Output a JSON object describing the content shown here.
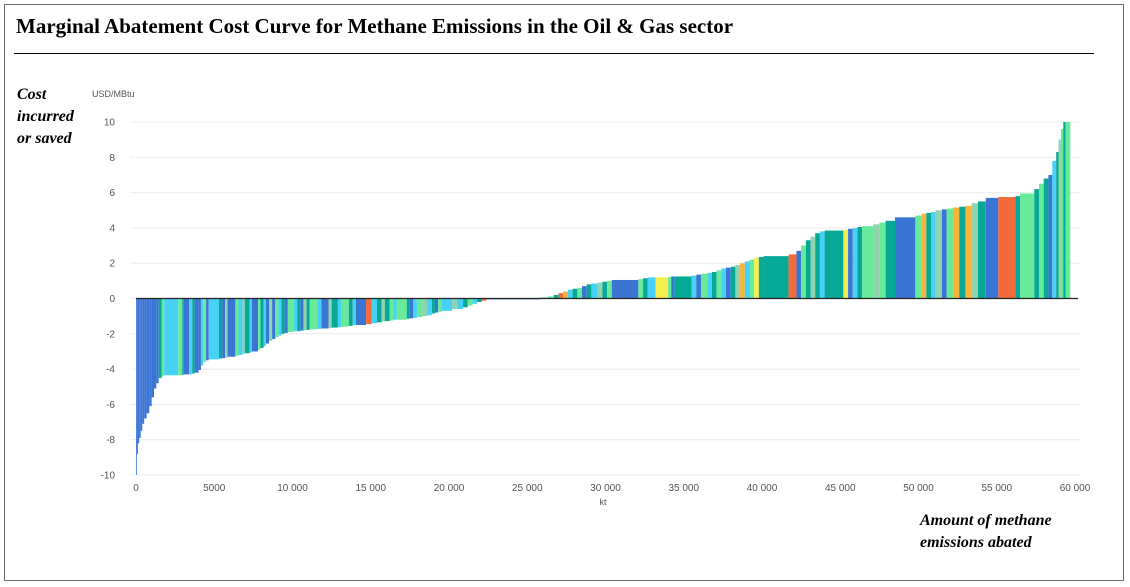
{
  "title": "Marginal Abatement Cost Curve for Methane Emissions in the Oil & Gas sector",
  "side_label": {
    "line1": "Cost",
    "line2": "incurred",
    "line3": "or saved"
  },
  "bottom_label": {
    "line1": "Amount of methane",
    "line2": "emissions abated"
  },
  "colors": {
    "blue": "#3a75d3",
    "cyan": "#47d1f6",
    "teal": "#08a896",
    "lightgreen": "#67ea9a",
    "seafoam": "#8fd3b0",
    "orange": "#f36b3b",
    "amber": "#f8b33b",
    "yellow": "#f3ee4e",
    "navy": "#2d55c4",
    "grid": "#ececec",
    "axis": "#222222"
  },
  "chart_data": {
    "type": "bar",
    "subtype": "marginal-abatement-cost-curve",
    "ylabel": "USD/MBtu",
    "xlabel": "kt",
    "xlim": [
      0,
      60000
    ],
    "ylim": [
      -10,
      10
    ],
    "x_ticks": [
      0,
      5000,
      10000,
      15000,
      20000,
      25000,
      30000,
      35000,
      40000,
      45000,
      50000,
      55000,
      60000
    ],
    "x_tick_labels": [
      "0",
      "5000",
      "10 000",
      "15 000",
      "20 000",
      "25 000",
      "30 000",
      "35 000",
      "40 000",
      "45 000",
      "50 000",
      "55 000",
      "60 000"
    ],
    "y_ticks": [
      -10,
      -8,
      -6,
      -4,
      -2,
      0,
      2,
      4,
      6,
      8,
      10
    ],
    "y_tick_labels": [
      "-10",
      "-8",
      "-6",
      "-4",
      "-2",
      "0",
      "2",
      "4",
      "6",
      "8",
      "10"
    ],
    "grid": "horizontal",
    "segments": [
      {
        "x0": 0,
        "x1": 50,
        "y": -10,
        "c": "blue"
      },
      {
        "x0": 50,
        "x1": 120,
        "y": -8.8,
        "c": "blue"
      },
      {
        "x0": 120,
        "x1": 200,
        "y": -8.2,
        "c": "blue"
      },
      {
        "x0": 200,
        "x1": 300,
        "y": -7.9,
        "c": "blue"
      },
      {
        "x0": 300,
        "x1": 400,
        "y": -7.5,
        "c": "blue"
      },
      {
        "x0": 400,
        "x1": 520,
        "y": -7.1,
        "c": "blue"
      },
      {
        "x0": 520,
        "x1": 680,
        "y": -6.8,
        "c": "blue"
      },
      {
        "x0": 680,
        "x1": 850,
        "y": -6.5,
        "c": "blue"
      },
      {
        "x0": 850,
        "x1": 1000,
        "y": -6.1,
        "c": "blue"
      },
      {
        "x0": 1000,
        "x1": 1150,
        "y": -5.6,
        "c": "blue"
      },
      {
        "x0": 1150,
        "x1": 1300,
        "y": -5.1,
        "c": "blue"
      },
      {
        "x0": 1300,
        "x1": 1450,
        "y": -4.8,
        "c": "blue"
      },
      {
        "x0": 1450,
        "x1": 1650,
        "y": -4.5,
        "c": "teal"
      },
      {
        "x0": 1650,
        "x1": 1800,
        "y": -4.4,
        "c": "lightgreen"
      },
      {
        "x0": 1800,
        "x1": 2700,
        "y": -4.35,
        "c": "cyan"
      },
      {
        "x0": 2700,
        "x1": 2950,
        "y": -4.35,
        "c": "lightgreen"
      },
      {
        "x0": 2950,
        "x1": 3050,
        "y": -4.33,
        "c": "teal"
      },
      {
        "x0": 3050,
        "x1": 3400,
        "y": -4.3,
        "c": "blue"
      },
      {
        "x0": 3400,
        "x1": 3600,
        "y": -4.3,
        "c": "cyan"
      },
      {
        "x0": 3600,
        "x1": 3750,
        "y": -4.25,
        "c": "teal"
      },
      {
        "x0": 3750,
        "x1": 4000,
        "y": -4.2,
        "c": "blue"
      },
      {
        "x0": 4000,
        "x1": 4150,
        "y": -4.05,
        "c": "blue"
      },
      {
        "x0": 4150,
        "x1": 4300,
        "y": -3.8,
        "c": "cyan"
      },
      {
        "x0": 4300,
        "x1": 4480,
        "y": -3.6,
        "c": "lightgreen"
      },
      {
        "x0": 4480,
        "x1": 4650,
        "y": -3.5,
        "c": "blue"
      },
      {
        "x0": 4650,
        "x1": 5300,
        "y": -3.45,
        "c": "cyan"
      },
      {
        "x0": 5300,
        "x1": 5500,
        "y": -3.4,
        "c": "teal"
      },
      {
        "x0": 5500,
        "x1": 5700,
        "y": -3.38,
        "c": "blue"
      },
      {
        "x0": 5700,
        "x1": 5850,
        "y": -3.35,
        "c": "seafoam"
      },
      {
        "x0": 5850,
        "x1": 6350,
        "y": -3.3,
        "c": "blue"
      },
      {
        "x0": 6350,
        "x1": 6550,
        "y": -3.25,
        "c": "lightgreen"
      },
      {
        "x0": 6550,
        "x1": 6800,
        "y": -3.2,
        "c": "cyan"
      },
      {
        "x0": 6800,
        "x1": 6950,
        "y": -3.15,
        "c": "seafoam"
      },
      {
        "x0": 6950,
        "x1": 7250,
        "y": -3.1,
        "c": "teal"
      },
      {
        "x0": 7250,
        "x1": 7400,
        "y": -3.05,
        "c": "cyan"
      },
      {
        "x0": 7400,
        "x1": 7800,
        "y": -3.0,
        "c": "blue"
      },
      {
        "x0": 7800,
        "x1": 7950,
        "y": -2.9,
        "c": "lightgreen"
      },
      {
        "x0": 7950,
        "x1": 8150,
        "y": -2.8,
        "c": "teal"
      },
      {
        "x0": 8150,
        "x1": 8300,
        "y": -2.7,
        "c": "cyan"
      },
      {
        "x0": 8300,
        "x1": 8500,
        "y": -2.55,
        "c": "blue"
      },
      {
        "x0": 8500,
        "x1": 8700,
        "y": -2.4,
        "c": "seafoam"
      },
      {
        "x0": 8700,
        "x1": 8900,
        "y": -2.3,
        "c": "blue"
      },
      {
        "x0": 8900,
        "x1": 9100,
        "y": -2.2,
        "c": "lightgreen"
      },
      {
        "x0": 9100,
        "x1": 9300,
        "y": -2.1,
        "c": "cyan"
      },
      {
        "x0": 9300,
        "x1": 9500,
        "y": -2.0,
        "c": "teal"
      },
      {
        "x0": 9500,
        "x1": 9700,
        "y": -1.95,
        "c": "blue"
      },
      {
        "x0": 9700,
        "x1": 10100,
        "y": -1.9,
        "c": "lightgreen"
      },
      {
        "x0": 10100,
        "x1": 10300,
        "y": -1.85,
        "c": "cyan"
      },
      {
        "x0": 10300,
        "x1": 10500,
        "y": -1.85,
        "c": "teal"
      },
      {
        "x0": 10500,
        "x1": 10700,
        "y": -1.82,
        "c": "blue"
      },
      {
        "x0": 10700,
        "x1": 10900,
        "y": -1.8,
        "c": "seafoam"
      },
      {
        "x0": 10900,
        "x1": 11100,
        "y": -1.78,
        "c": "teal"
      },
      {
        "x0": 11100,
        "x1": 11600,
        "y": -1.75,
        "c": "lightgreen"
      },
      {
        "x0": 11600,
        "x1": 11850,
        "y": -1.72,
        "c": "cyan"
      },
      {
        "x0": 11850,
        "x1": 12300,
        "y": -1.7,
        "c": "blue"
      },
      {
        "x0": 12300,
        "x1": 12500,
        "y": -1.68,
        "c": "seafoam"
      },
      {
        "x0": 12500,
        "x1": 12900,
        "y": -1.65,
        "c": "teal"
      },
      {
        "x0": 12900,
        "x1": 13100,
        "y": -1.62,
        "c": "cyan"
      },
      {
        "x0": 13100,
        "x1": 13600,
        "y": -1.6,
        "c": "lightgreen"
      },
      {
        "x0": 13600,
        "x1": 13850,
        "y": -1.55,
        "c": "teal"
      },
      {
        "x0": 13850,
        "x1": 14050,
        "y": -1.5,
        "c": "cyan"
      },
      {
        "x0": 14050,
        "x1": 14700,
        "y": -1.5,
        "c": "blue"
      },
      {
        "x0": 14700,
        "x1": 15050,
        "y": -1.45,
        "c": "orange"
      },
      {
        "x0": 15050,
        "x1": 15400,
        "y": -1.4,
        "c": "cyan"
      },
      {
        "x0": 15400,
        "x1": 15700,
        "y": -1.35,
        "c": "teal"
      },
      {
        "x0": 15700,
        "x1": 15900,
        "y": -1.3,
        "c": "seafoam"
      },
      {
        "x0": 15900,
        "x1": 16200,
        "y": -1.28,
        "c": "teal"
      },
      {
        "x0": 16200,
        "x1": 16450,
        "y": -1.25,
        "c": "lightgreen"
      },
      {
        "x0": 16450,
        "x1": 16650,
        "y": -1.2,
        "c": "cyan"
      },
      {
        "x0": 16650,
        "x1": 17300,
        "y": -1.2,
        "c": "lightgreen"
      },
      {
        "x0": 17300,
        "x1": 17500,
        "y": -1.15,
        "c": "teal"
      },
      {
        "x0": 17500,
        "x1": 17700,
        "y": -1.12,
        "c": "blue"
      },
      {
        "x0": 17700,
        "x1": 17950,
        "y": -1.1,
        "c": "cyan"
      },
      {
        "x0": 17950,
        "x1": 18300,
        "y": -1.05,
        "c": "lightgreen"
      },
      {
        "x0": 18300,
        "x1": 18600,
        "y": -1.0,
        "c": "seafoam"
      },
      {
        "x0": 18600,
        "x1": 18900,
        "y": -0.95,
        "c": "cyan"
      },
      {
        "x0": 18900,
        "x1": 19100,
        "y": -0.85,
        "c": "teal"
      },
      {
        "x0": 19100,
        "x1": 19300,
        "y": -0.8,
        "c": "blue"
      },
      {
        "x0": 19300,
        "x1": 19550,
        "y": -0.75,
        "c": "lightgreen"
      },
      {
        "x0": 19550,
        "x1": 20200,
        "y": -0.7,
        "c": "cyan"
      },
      {
        "x0": 20200,
        "x1": 20500,
        "y": -0.6,
        "c": "seafoam"
      },
      {
        "x0": 20500,
        "x1": 20900,
        "y": -0.6,
        "c": "cyan"
      },
      {
        "x0": 20900,
        "x1": 21200,
        "y": -0.5,
        "c": "teal"
      },
      {
        "x0": 21200,
        "x1": 21500,
        "y": -0.4,
        "c": "lightgreen"
      },
      {
        "x0": 21500,
        "x1": 21800,
        "y": -0.3,
        "c": "cyan"
      },
      {
        "x0": 21800,
        "x1": 22100,
        "y": -0.2,
        "c": "teal"
      },
      {
        "x0": 22100,
        "x1": 22400,
        "y": -0.12,
        "c": "orange"
      },
      {
        "x0": 22400,
        "x1": 25800,
        "y": -0.05,
        "c": "blue"
      },
      {
        "x0": 25800,
        "x1": 26300,
        "y": 0.05,
        "c": "teal"
      },
      {
        "x0": 26300,
        "x1": 26700,
        "y": 0.12,
        "c": "lightgreen"
      },
      {
        "x0": 26700,
        "x1": 27000,
        "y": 0.2,
        "c": "teal"
      },
      {
        "x0": 27000,
        "x1": 27300,
        "y": 0.3,
        "c": "orange"
      },
      {
        "x0": 27300,
        "x1": 27600,
        "y": 0.4,
        "c": "amber"
      },
      {
        "x0": 27600,
        "x1": 27900,
        "y": 0.5,
        "c": "cyan"
      },
      {
        "x0": 27900,
        "x1": 28200,
        "y": 0.55,
        "c": "teal"
      },
      {
        "x0": 28200,
        "x1": 28500,
        "y": 0.6,
        "c": "lightgreen"
      },
      {
        "x0": 28500,
        "x1": 28800,
        "y": 0.7,
        "c": "blue"
      },
      {
        "x0": 28800,
        "x1": 29100,
        "y": 0.8,
        "c": "teal"
      },
      {
        "x0": 29100,
        "x1": 29500,
        "y": 0.85,
        "c": "cyan"
      },
      {
        "x0": 29500,
        "x1": 29800,
        "y": 0.9,
        "c": "seafoam"
      },
      {
        "x0": 29800,
        "x1": 30100,
        "y": 0.95,
        "c": "teal"
      },
      {
        "x0": 30100,
        "x1": 30400,
        "y": 1.0,
        "c": "lightgreen"
      },
      {
        "x0": 30400,
        "x1": 32100,
        "y": 1.05,
        "c": "blue"
      },
      {
        "x0": 32100,
        "x1": 32400,
        "y": 1.1,
        "c": "lightgreen"
      },
      {
        "x0": 32400,
        "x1": 32700,
        "y": 1.15,
        "c": "teal"
      },
      {
        "x0": 32700,
        "x1": 33200,
        "y": 1.2,
        "c": "cyan"
      },
      {
        "x0": 33200,
        "x1": 34000,
        "y": 1.2,
        "c": "yellow"
      },
      {
        "x0": 34000,
        "x1": 34200,
        "y": 1.22,
        "c": "lightgreen"
      },
      {
        "x0": 34200,
        "x1": 34400,
        "y": 1.25,
        "c": "blue"
      },
      {
        "x0": 34400,
        "x1": 35500,
        "y": 1.25,
        "c": "teal"
      },
      {
        "x0": 35500,
        "x1": 35800,
        "y": 1.3,
        "c": "cyan"
      },
      {
        "x0": 35800,
        "x1": 36100,
        "y": 1.35,
        "c": "blue"
      },
      {
        "x0": 36100,
        "x1": 36500,
        "y": 1.4,
        "c": "lightgreen"
      },
      {
        "x0": 36500,
        "x1": 36800,
        "y": 1.45,
        "c": "cyan"
      },
      {
        "x0": 36800,
        "x1": 37100,
        "y": 1.5,
        "c": "teal"
      },
      {
        "x0": 37100,
        "x1": 37400,
        "y": 1.6,
        "c": "lightgreen"
      },
      {
        "x0": 37400,
        "x1": 37700,
        "y": 1.7,
        "c": "cyan"
      },
      {
        "x0": 37700,
        "x1": 38000,
        "y": 1.75,
        "c": "blue"
      },
      {
        "x0": 38000,
        "x1": 38300,
        "y": 1.8,
        "c": "teal"
      },
      {
        "x0": 38300,
        "x1": 38600,
        "y": 1.9,
        "c": "seafoam"
      },
      {
        "x0": 38600,
        "x1": 38900,
        "y": 2.0,
        "c": "amber"
      },
      {
        "x0": 38900,
        "x1": 39200,
        "y": 2.1,
        "c": "cyan"
      },
      {
        "x0": 39200,
        "x1": 39500,
        "y": 2.2,
        "c": "lightgreen"
      },
      {
        "x0": 39500,
        "x1": 39800,
        "y": 2.3,
        "c": "yellow"
      },
      {
        "x0": 39800,
        "x1": 40100,
        "y": 2.35,
        "c": "teal"
      },
      {
        "x0": 40100,
        "x1": 41700,
        "y": 2.4,
        "c": "teal"
      },
      {
        "x0": 41700,
        "x1": 42200,
        "y": 2.5,
        "c": "orange"
      },
      {
        "x0": 42200,
        "x1": 42500,
        "y": 2.7,
        "c": "blue"
      },
      {
        "x0": 42500,
        "x1": 42800,
        "y": 3.0,
        "c": "lightgreen"
      },
      {
        "x0": 42800,
        "x1": 43100,
        "y": 3.3,
        "c": "teal"
      },
      {
        "x0": 43100,
        "x1": 43400,
        "y": 3.5,
        "c": "seafoam"
      },
      {
        "x0": 43400,
        "x1": 43700,
        "y": 3.7,
        "c": "teal"
      },
      {
        "x0": 43700,
        "x1": 44000,
        "y": 3.8,
        "c": "cyan"
      },
      {
        "x0": 44000,
        "x1": 45200,
        "y": 3.85,
        "c": "teal"
      },
      {
        "x0": 45200,
        "x1": 45500,
        "y": 3.9,
        "c": "yellow"
      },
      {
        "x0": 45500,
        "x1": 45800,
        "y": 3.95,
        "c": "blue"
      },
      {
        "x0": 45800,
        "x1": 46100,
        "y": 4.0,
        "c": "cyan"
      },
      {
        "x0": 46100,
        "x1": 46400,
        "y": 4.05,
        "c": "teal"
      },
      {
        "x0": 46400,
        "x1": 47100,
        "y": 4.1,
        "c": "lightgreen"
      },
      {
        "x0": 47100,
        "x1": 47500,
        "y": 4.2,
        "c": "seafoam"
      },
      {
        "x0": 47500,
        "x1": 47900,
        "y": 4.3,
        "c": "lightgreen"
      },
      {
        "x0": 47900,
        "x1": 48500,
        "y": 4.4,
        "c": "teal"
      },
      {
        "x0": 48500,
        "x1": 49800,
        "y": 4.6,
        "c": "blue"
      },
      {
        "x0": 49800,
        "x1": 50200,
        "y": 4.7,
        "c": "lightgreen"
      },
      {
        "x0": 50200,
        "x1": 50500,
        "y": 4.8,
        "c": "amber"
      },
      {
        "x0": 50500,
        "x1": 50800,
        "y": 4.85,
        "c": "teal"
      },
      {
        "x0": 50800,
        "x1": 51100,
        "y": 4.9,
        "c": "cyan"
      },
      {
        "x0": 51100,
        "x1": 51500,
        "y": 5.0,
        "c": "seafoam"
      },
      {
        "x0": 51500,
        "x1": 51800,
        "y": 5.05,
        "c": "blue"
      },
      {
        "x0": 51800,
        "x1": 52200,
        "y": 5.1,
        "c": "lightgreen"
      },
      {
        "x0": 52200,
        "x1": 52600,
        "y": 5.15,
        "c": "amber"
      },
      {
        "x0": 52600,
        "x1": 53000,
        "y": 5.2,
        "c": "teal"
      },
      {
        "x0": 53000,
        "x1": 53400,
        "y": 5.25,
        "c": "amber"
      },
      {
        "x0": 53400,
        "x1": 53800,
        "y": 5.4,
        "c": "seafoam"
      },
      {
        "x0": 53800,
        "x1": 54300,
        "y": 5.5,
        "c": "teal"
      },
      {
        "x0": 54300,
        "x1": 55100,
        "y": 5.7,
        "c": "blue"
      },
      {
        "x0": 55100,
        "x1": 56200,
        "y": 5.75,
        "c": "orange"
      },
      {
        "x0": 56200,
        "x1": 56500,
        "y": 5.8,
        "c": "teal"
      },
      {
        "x0": 56500,
        "x1": 57400,
        "y": 5.95,
        "c": "lightgreen"
      },
      {
        "x0": 57400,
        "x1": 57700,
        "y": 6.2,
        "c": "teal"
      },
      {
        "x0": 57700,
        "x1": 58000,
        "y": 6.5,
        "c": "lightgreen"
      },
      {
        "x0": 58000,
        "x1": 58300,
        "y": 6.8,
        "c": "teal"
      },
      {
        "x0": 58300,
        "x1": 58550,
        "y": 7.0,
        "c": "blue"
      },
      {
        "x0": 58550,
        "x1": 58800,
        "y": 7.8,
        "c": "cyan"
      },
      {
        "x0": 58800,
        "x1": 58950,
        "y": 8.3,
        "c": "teal"
      },
      {
        "x0": 58950,
        "x1": 59100,
        "y": 9.0,
        "c": "seafoam"
      },
      {
        "x0": 59100,
        "x1": 59250,
        "y": 9.6,
        "c": "lightgreen"
      },
      {
        "x0": 59250,
        "x1": 59400,
        "y": 10,
        "c": "teal"
      },
      {
        "x0": 59400,
        "x1": 59700,
        "y": 10,
        "c": "lightgreen"
      }
    ]
  }
}
